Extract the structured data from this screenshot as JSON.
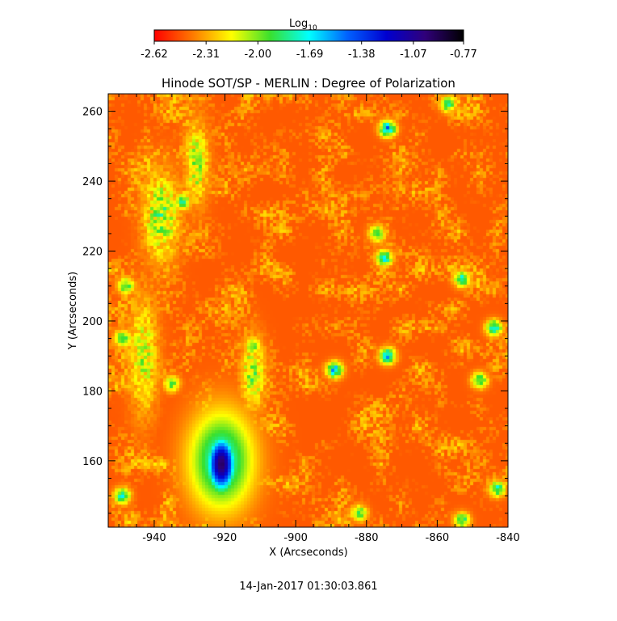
{
  "chart_data": {
    "type": "heatmap",
    "title": "Hinode SOT/SP - MERLIN : Degree of Polarization",
    "xlabel": "X (Arcseconds)",
    "ylabel": "Y (Arcseconds)",
    "xlim": [
      -953,
      -840
    ],
    "ylim": [
      141,
      265
    ],
    "x_ticks": [
      -940,
      -920,
      -900,
      -880,
      -860,
      -840
    ],
    "x_tick_labels": [
      "-940",
      "-920",
      "-900",
      "-880",
      "-860",
      "-840"
    ],
    "y_ticks": [
      160,
      180,
      200,
      220,
      240,
      260
    ],
    "y_tick_labels": [
      "160",
      "180",
      "200",
      "220",
      "240",
      "260"
    ],
    "colorbar": {
      "label_main": "Log",
      "label_sub": "10",
      "range": [
        -2.62,
        -0.77
      ],
      "ticks": [
        -2.62,
        -2.31,
        -2.0,
        -1.69,
        -1.38,
        -1.07,
        -0.77
      ],
      "tick_labels": [
        "-2.62",
        "-2.31",
        "-2.00",
        "-1.69",
        "-1.38",
        "-1.07",
        "-0.77"
      ],
      "colormap": [
        "#ff0000",
        "#ff7a00",
        "#ffff00",
        "#39e02e",
        "#00ffff",
        "#0060ff",
        "#0000d0",
        "#30007a",
        "#000000"
      ]
    },
    "background_level": -2.45,
    "features": [
      {
        "kind": "spot-core",
        "x": -921,
        "y": 159,
        "rx": 5,
        "ry": 10,
        "level": -0.95
      },
      {
        "kind": "spot-penumbra",
        "x": -921,
        "y": 160,
        "rx": 11,
        "ry": 17,
        "level": -1.7
      },
      {
        "kind": "plage",
        "x": -938,
        "y": 230,
        "rx": 6,
        "ry": 15,
        "level": -2.0
      },
      {
        "kind": "plage",
        "x": -928,
        "y": 245,
        "rx": 4,
        "ry": 14,
        "level": -2.05
      },
      {
        "kind": "plage",
        "x": -943,
        "y": 190,
        "rx": 5,
        "ry": 20,
        "level": -2.1
      },
      {
        "kind": "plage",
        "x": -912,
        "y": 185,
        "rx": 4,
        "ry": 12,
        "level": -2.0
      }
    ],
    "patches": [
      {
        "x": -932,
        "y": 234,
        "level": -1.75
      },
      {
        "x": -948,
        "y": 210,
        "level": -1.8
      },
      {
        "x": -949,
        "y": 195,
        "level": -1.75
      },
      {
        "x": -949,
        "y": 150,
        "level": -1.7
      },
      {
        "x": -874,
        "y": 255,
        "level": -1.45
      },
      {
        "x": -875,
        "y": 218,
        "level": -1.6
      },
      {
        "x": -877,
        "y": 225,
        "level": -1.8
      },
      {
        "x": -889,
        "y": 186,
        "level": -1.5
      },
      {
        "x": -874,
        "y": 190,
        "level": -1.55
      },
      {
        "x": -844,
        "y": 198,
        "level": -1.6
      },
      {
        "x": -853,
        "y": 212,
        "level": -1.7
      },
      {
        "x": -848,
        "y": 183,
        "level": -1.75
      },
      {
        "x": -857,
        "y": 262,
        "level": -1.8
      },
      {
        "x": -843,
        "y": 152,
        "level": -1.75
      },
      {
        "x": -853,
        "y": 143,
        "level": -1.8
      },
      {
        "x": -882,
        "y": 145,
        "level": -1.85
      },
      {
        "x": -912,
        "y": 193,
        "level": -1.9
      },
      {
        "x": -935,
        "y": 182,
        "level": -1.9
      }
    ]
  },
  "timestamp": "14-Jan-2017 01:30:03.861"
}
